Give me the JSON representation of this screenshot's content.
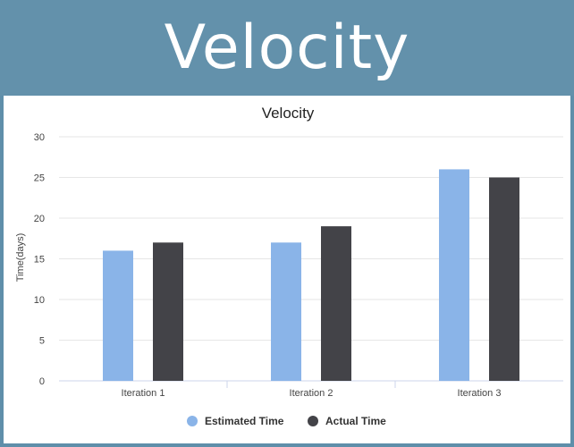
{
  "banner": {
    "title": "Velocity"
  },
  "chart_data": {
    "type": "bar",
    "title": "Velocity",
    "xlabel": "",
    "ylabel": "Time(days)",
    "categories": [
      "Iteration 1",
      "Iteration 2",
      "Iteration 3"
    ],
    "series": [
      {
        "name": "Estimated Time",
        "values": [
          16,
          17,
          26
        ],
        "color": "#8ab4e8"
      },
      {
        "name": "Actual Time",
        "values": [
          17,
          19,
          25
        ],
        "color": "#434348"
      }
    ],
    "ylim": [
      0,
      30
    ],
    "yticks": [
      0,
      5,
      10,
      15,
      20,
      25,
      30
    ],
    "grid": true,
    "legend": "bottom-center"
  }
}
